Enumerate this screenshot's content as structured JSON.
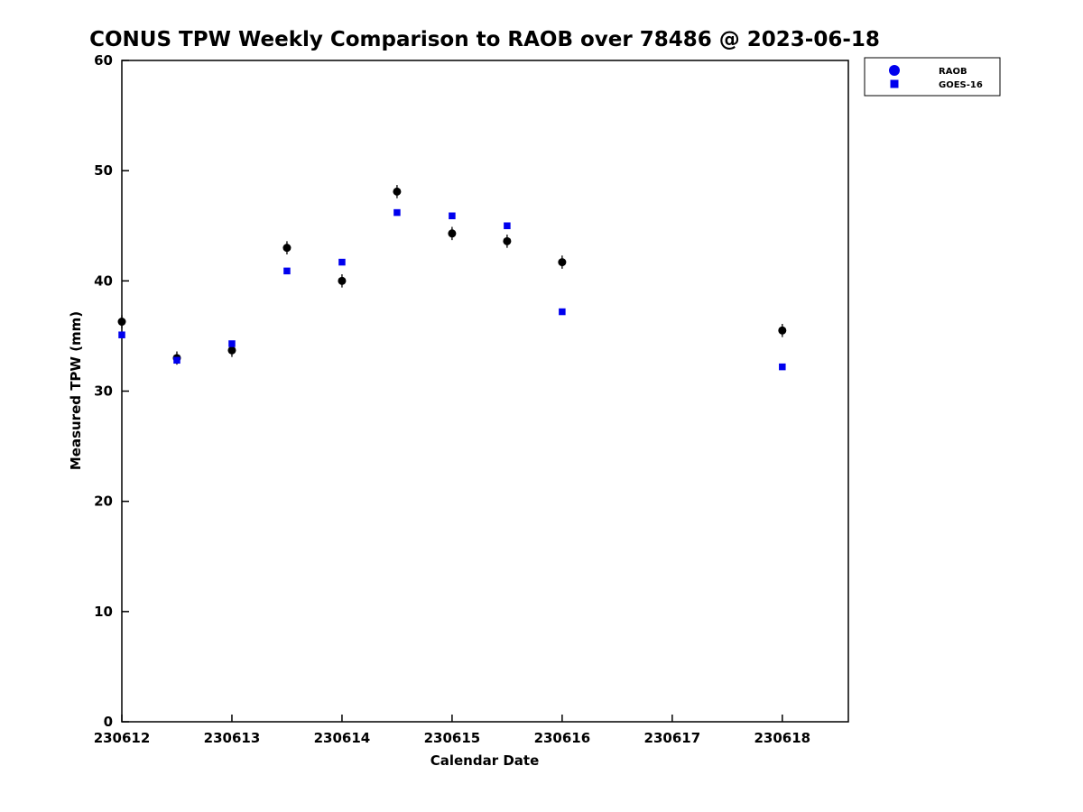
{
  "page": {
    "background": "#ffffff"
  },
  "chart_data": {
    "type": "scatter",
    "title": "CONUS TPW Weekly Comparison to RAOB over 78486 @ 2023-06-18",
    "xlabel": "Calendar Date",
    "ylabel": "Measured TPW (mm)",
    "xlim": [
      230612,
      230618.6
    ],
    "ylim": [
      0,
      60
    ],
    "xticks": [
      230612,
      230613,
      230614,
      230615,
      230616,
      230617,
      230618
    ],
    "yticks": [
      0,
      10,
      20,
      30,
      40,
      50,
      60
    ],
    "grid": false,
    "legend": {
      "position": "northeast-outside",
      "entries": [
        {
          "label": "RAOB",
          "marker": "circle",
          "color": "#0000ee"
        },
        {
          "label": "GOES-16",
          "marker": "square",
          "color": "#0000ee"
        }
      ]
    },
    "series": [
      {
        "name": "RAOB",
        "marker": "circle",
        "color": "#000000",
        "yerr": 0.6,
        "x": [
          230612,
          230612.5,
          230613,
          230613.5,
          230614,
          230614.5,
          230615,
          230615.5,
          230616,
          230618
        ],
        "y": [
          36.3,
          33.0,
          33.7,
          43.0,
          40.0,
          48.1,
          44.3,
          43.6,
          41.7,
          35.5
        ]
      },
      {
        "name": "GOES-16",
        "marker": "square",
        "color": "#0000ee",
        "x": [
          230612,
          230612.5,
          230613,
          230613.5,
          230614,
          230614.5,
          230615,
          230615.5,
          230616,
          230618
        ],
        "y": [
          35.1,
          32.8,
          34.3,
          40.9,
          41.7,
          46.2,
          45.9,
          45.0,
          37.2,
          32.2
        ]
      }
    ]
  }
}
